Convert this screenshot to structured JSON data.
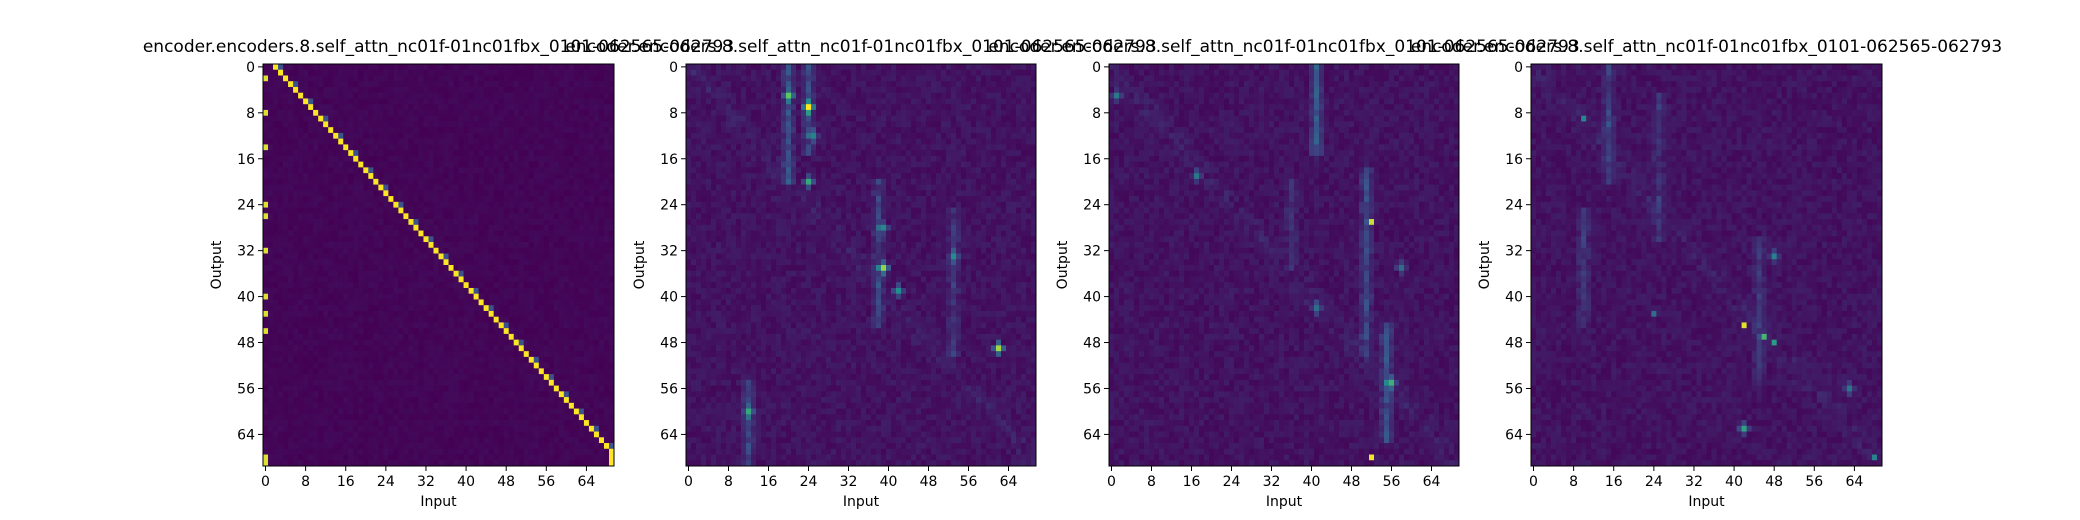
{
  "figure": {
    "background": "#ffffff",
    "colormap": "viridis",
    "colormap_stops": [
      "#440154",
      "#3b528b",
      "#21918c",
      "#5ec962",
      "#fde725"
    ]
  },
  "chart_data": [
    {
      "type": "heatmap",
      "title": "encoder.encoders.8.self_attn_nc01f-01nc01fbx_0101-062565-062793",
      "xlabel": "Input",
      "ylabel": "Output",
      "size": 70,
      "xticks": [
        0,
        8,
        16,
        24,
        32,
        40,
        48,
        56,
        64
      ],
      "yticks": [
        0,
        8,
        16,
        24,
        32,
        40,
        48,
        56,
        64
      ],
      "pattern": "diagonal",
      "grid": false
    },
    {
      "type": "heatmap",
      "title": "encoder.encoders.8.self_attn_nc01f-01nc01fbx_0101-062565-062793",
      "xlabel": "Input",
      "ylabel": "Output",
      "size": 70,
      "xticks": [
        0,
        8,
        16,
        24,
        32,
        40,
        48,
        56,
        64
      ],
      "yticks": [
        0,
        8,
        16,
        24,
        32,
        40,
        48,
        56,
        64
      ],
      "pattern": "diffuse",
      "grid": false
    },
    {
      "type": "heatmap",
      "title": "encoder.encoders.8.self_attn_nc01f-01nc01fbx_0101-062565-062793",
      "xlabel": "Input",
      "ylabel": "Output",
      "size": 70,
      "xticks": [
        0,
        8,
        16,
        24,
        32,
        40,
        48,
        56,
        64
      ],
      "yticks": [
        0,
        8,
        16,
        24,
        32,
        40,
        48,
        56,
        64
      ],
      "pattern": "diffuse",
      "grid": false
    },
    {
      "type": "heatmap",
      "title": "encoder.encoders.8.self_attn_nc01f-01nc01fbx_0101-062565-062793",
      "xlabel": "Input",
      "ylabel": "Output",
      "size": 70,
      "xticks": [
        0,
        8,
        16,
        24,
        32,
        40,
        48,
        56,
        64
      ],
      "yticks": [
        0,
        8,
        16,
        24,
        32,
        40,
        48,
        56,
        64
      ],
      "pattern": "diffuse",
      "grid": false
    }
  ]
}
